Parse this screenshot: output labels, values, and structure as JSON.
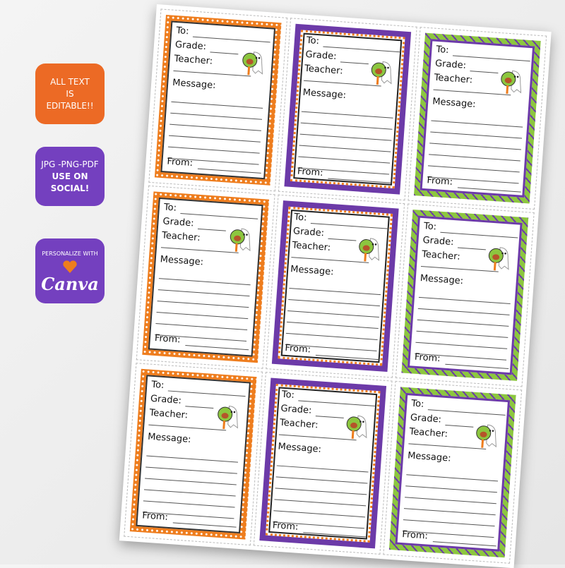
{
  "badges": {
    "editable": "ALL TEXT IS EDITABLE!!",
    "formats": "JPG -PNG-PDF",
    "social": "USE ON SOCIAL!",
    "personalize": "PERSONALIZE WITH",
    "canva": "Canva"
  },
  "cards": [
    {
      "style": "orange",
      "to": "To:",
      "grade": "Grade:",
      "teacher": "Teacher:",
      "message": "Message:",
      "from": "From:"
    },
    {
      "style": "purple",
      "to": "To:",
      "grade": "Grade:",
      "teacher": "Teacher:",
      "message": "Message:",
      "from": "From:"
    },
    {
      "style": "green",
      "to": "To:",
      "grade": "Grade:",
      "teacher": "Teacher:",
      "message": "Message:",
      "from": "From:"
    },
    {
      "style": "orange",
      "to": "To:",
      "grade": "Grade:",
      "teacher": "Teacher:",
      "message": "Message:",
      "from": "From:"
    },
    {
      "style": "purple",
      "to": "To:",
      "grade": "Grade:",
      "teacher": "Teacher:",
      "message": "Message:",
      "from": "From:"
    },
    {
      "style": "green",
      "to": "To:",
      "grade": "Grade:",
      "teacher": "Teacher:",
      "message": "Message:",
      "from": "From:"
    },
    {
      "style": "orange",
      "to": "To:",
      "grade": "Grade:",
      "teacher": "Teacher:",
      "message": "Message:",
      "from": "From:"
    },
    {
      "style": "purple",
      "to": "To:",
      "grade": "Grade:",
      "teacher": "Teacher:",
      "message": "Message:",
      "from": "From:"
    },
    {
      "style": "green",
      "to": "To:",
      "grade": "Grade:",
      "teacher": "Teacher:",
      "message": "Message:",
      "from": "From:"
    }
  ]
}
